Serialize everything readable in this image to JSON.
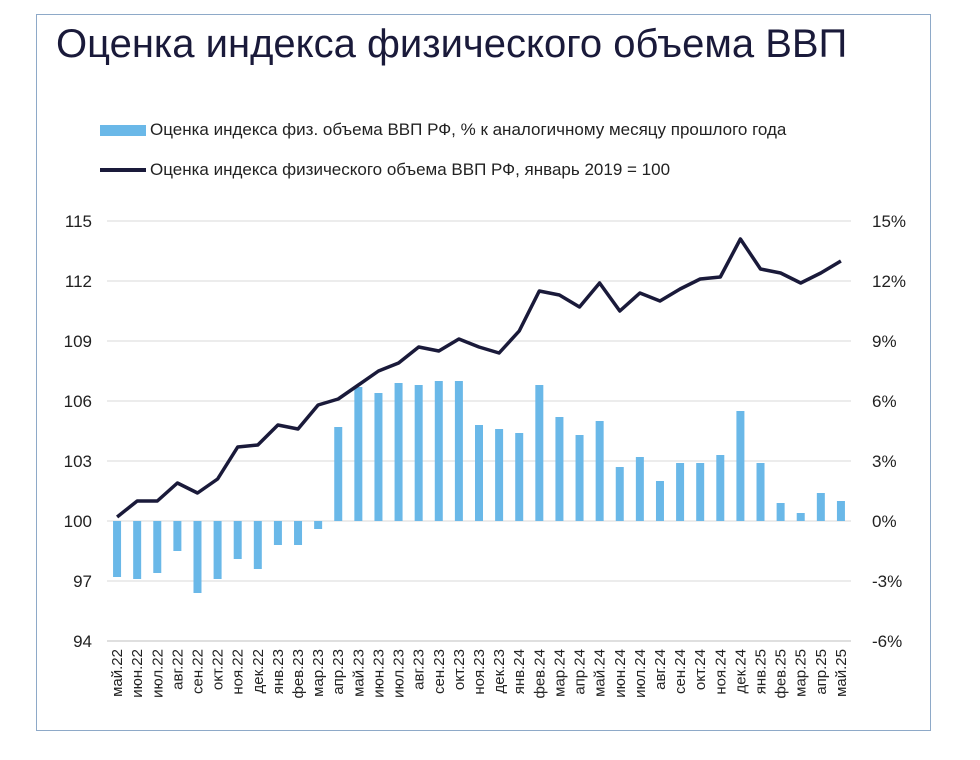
{
  "chart_data": {
    "type": "bar+line",
    "title": "Оценка индекса физического объема ВВП",
    "categories": [
      "май.22",
      "июн.22",
      "июл.22",
      "авг.22",
      "сен.22",
      "окт.22",
      "ноя.22",
      "дек.22",
      "янв.23",
      "фев.23",
      "мар.23",
      "апр.23",
      "май.23",
      "июн.23",
      "июл.23",
      "авг.23",
      "сен.23",
      "окт.23",
      "ноя.23",
      "дек.23",
      "янв.24",
      "фев.24",
      "мар.24",
      "апр.24",
      "май.24",
      "июн.24",
      "июл.24",
      "авг.24",
      "сен.24",
      "окт.24",
      "ноя.24",
      "дек.24",
      "янв.25",
      "фев.25",
      "мар.25",
      "апр.25",
      "май.25"
    ],
    "series": [
      {
        "name": "Оценка индекса физ. объема ВВП РФ, % к аналогичному месяцу прошлого года",
        "type": "bar",
        "axis": "right",
        "color": "#6ab8e8",
        "values": [
          -2.8,
          -2.9,
          -2.6,
          -1.5,
          -3.6,
          -2.9,
          -1.9,
          -2.4,
          -1.2,
          -1.2,
          -0.4,
          4.7,
          6.7,
          6.4,
          6.9,
          6.8,
          7.0,
          7.0,
          4.8,
          4.6,
          4.4,
          6.8,
          5.2,
          4.3,
          5.0,
          2.7,
          3.2,
          2.0,
          2.9,
          2.9,
          3.3,
          5.5,
          2.9,
          0.9,
          0.4,
          1.4,
          1.0
        ]
      },
      {
        "name": "Оценка индекса физического объема ВВП РФ, январь 2019 = 100",
        "type": "line",
        "axis": "left",
        "color": "#1a1a3a",
        "values": [
          100.2,
          101.0,
          101.0,
          101.9,
          101.4,
          102.1,
          103.7,
          103.8,
          104.8,
          104.6,
          105.8,
          106.1,
          106.8,
          107.5,
          107.9,
          108.7,
          108.5,
          109.1,
          108.7,
          108.4,
          109.5,
          111.5,
          111.3,
          110.7,
          111.9,
          110.5,
          111.4,
          111.0,
          111.6,
          112.1,
          112.2,
          114.1,
          112.6,
          112.4,
          111.9,
          112.4,
          113.0
        ]
      }
    ],
    "y_left": {
      "ticks": [
        "94",
        "97",
        "100",
        "103",
        "106",
        "109",
        "112",
        "115"
      ],
      "ylim": [
        94,
        115
      ]
    },
    "y_right": {
      "ticks": [
        "-6%",
        "-3%",
        "0%",
        "3%",
        "6%",
        "9%",
        "12%",
        "15%"
      ],
      "ylim": [
        -6,
        15
      ]
    },
    "grid": true,
    "legend_position": "top-left"
  }
}
